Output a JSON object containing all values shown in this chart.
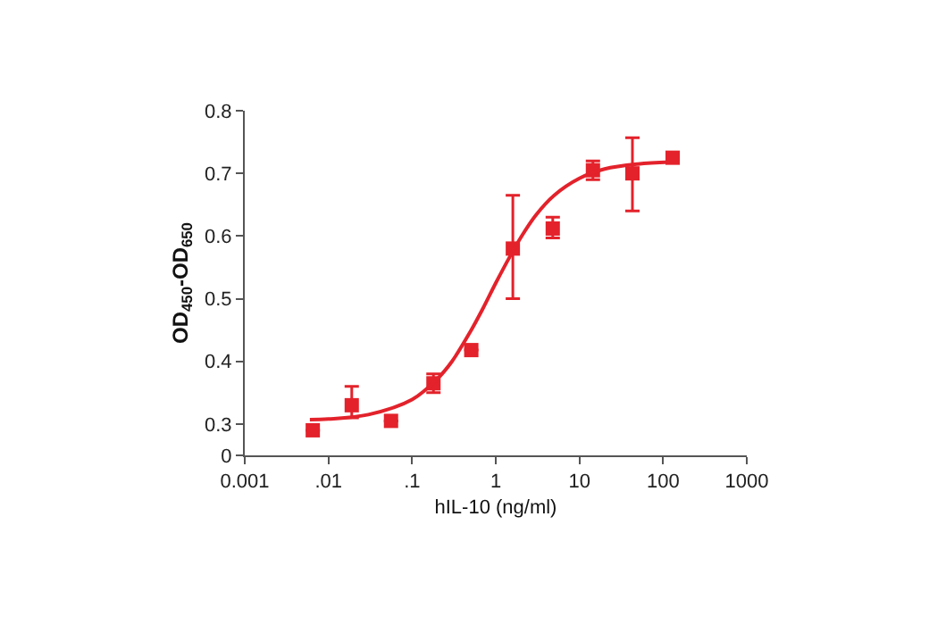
{
  "chart_data": {
    "type": "scatter",
    "xlabel": "hIL-10 (ng/ml)",
    "ylabel": "OD$_{450}$-OD$_{650}$",
    "log": "x",
    "xlim": [
      0.001,
      1000
    ],
    "xticks": [
      {
        "value": 0.001,
        "label": "0.001"
      },
      {
        "value": 0.01,
        "label": ".01"
      },
      {
        "value": 0.1,
        "label": ".1"
      },
      1,
      10,
      100,
      1000
    ],
    "ylim": [
      0.25,
      0.8
    ],
    "yticks": [
      {
        "value": 0.25,
        "label": "0"
      },
      0.3,
      0.4,
      0.5,
      0.6,
      0.7,
      0.8
    ],
    "series": [
      {
        "color": "#e3222b",
        "marker": "square",
        "x": [
          0.0065,
          0.019,
          0.056,
          0.18,
          0.51,
          1.6,
          4.8,
          14.5,
          43,
          130
        ],
        "values": [
          0.29,
          0.33,
          0.305,
          0.365,
          0.418,
          0.58,
          0.612,
          0.705,
          0.7,
          0.725
        ],
        "errors": [
          null,
          [
            0.31,
            0.36
          ],
          null,
          [
            0.35,
            0.38
          ],
          null,
          [
            0.5,
            0.665
          ],
          [
            0.597,
            0.63
          ],
          [
            0.69,
            0.72
          ],
          [
            0.64,
            0.757
          ],
          null
        ]
      },
      {
        "type": "line",
        "color": "#e3222b",
        "marker": "none",
        "line_style": "solid",
        "x": [
          0.006,
          0.01,
          0.03,
          0.1,
          0.2,
          0.3,
          0.5,
          0.7,
          1,
          1.5,
          2,
          3,
          5,
          10,
          20,
          50,
          120
        ],
        "values": [
          0.307,
          0.308,
          0.315,
          0.339,
          0.372,
          0.4,
          0.448,
          0.484,
          0.525,
          0.569,
          0.598,
          0.633,
          0.665,
          0.692,
          0.707,
          0.715,
          0.718
        ]
      }
    ]
  }
}
